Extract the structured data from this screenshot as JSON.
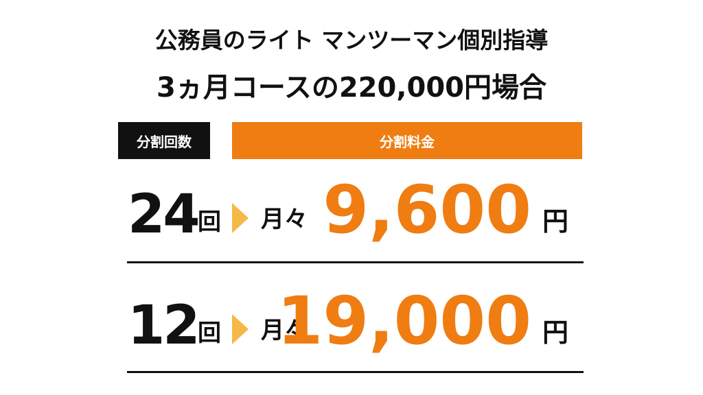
{
  "header": {
    "title_line1": "公務員のライト マンツーマン個別指導",
    "title_line2": "3ヵ月コースの220,000円場合"
  },
  "table": {
    "columns": [
      "分割回数",
      "分割料金"
    ],
    "rows": [
      {
        "count": "24",
        "count_unit": "回",
        "monthly": "月々",
        "amount": "9,600",
        "currency": "円"
      },
      {
        "count": "12",
        "count_unit": "回",
        "monthly": "月々",
        "amount": "19,000",
        "currency": "円"
      }
    ]
  }
}
